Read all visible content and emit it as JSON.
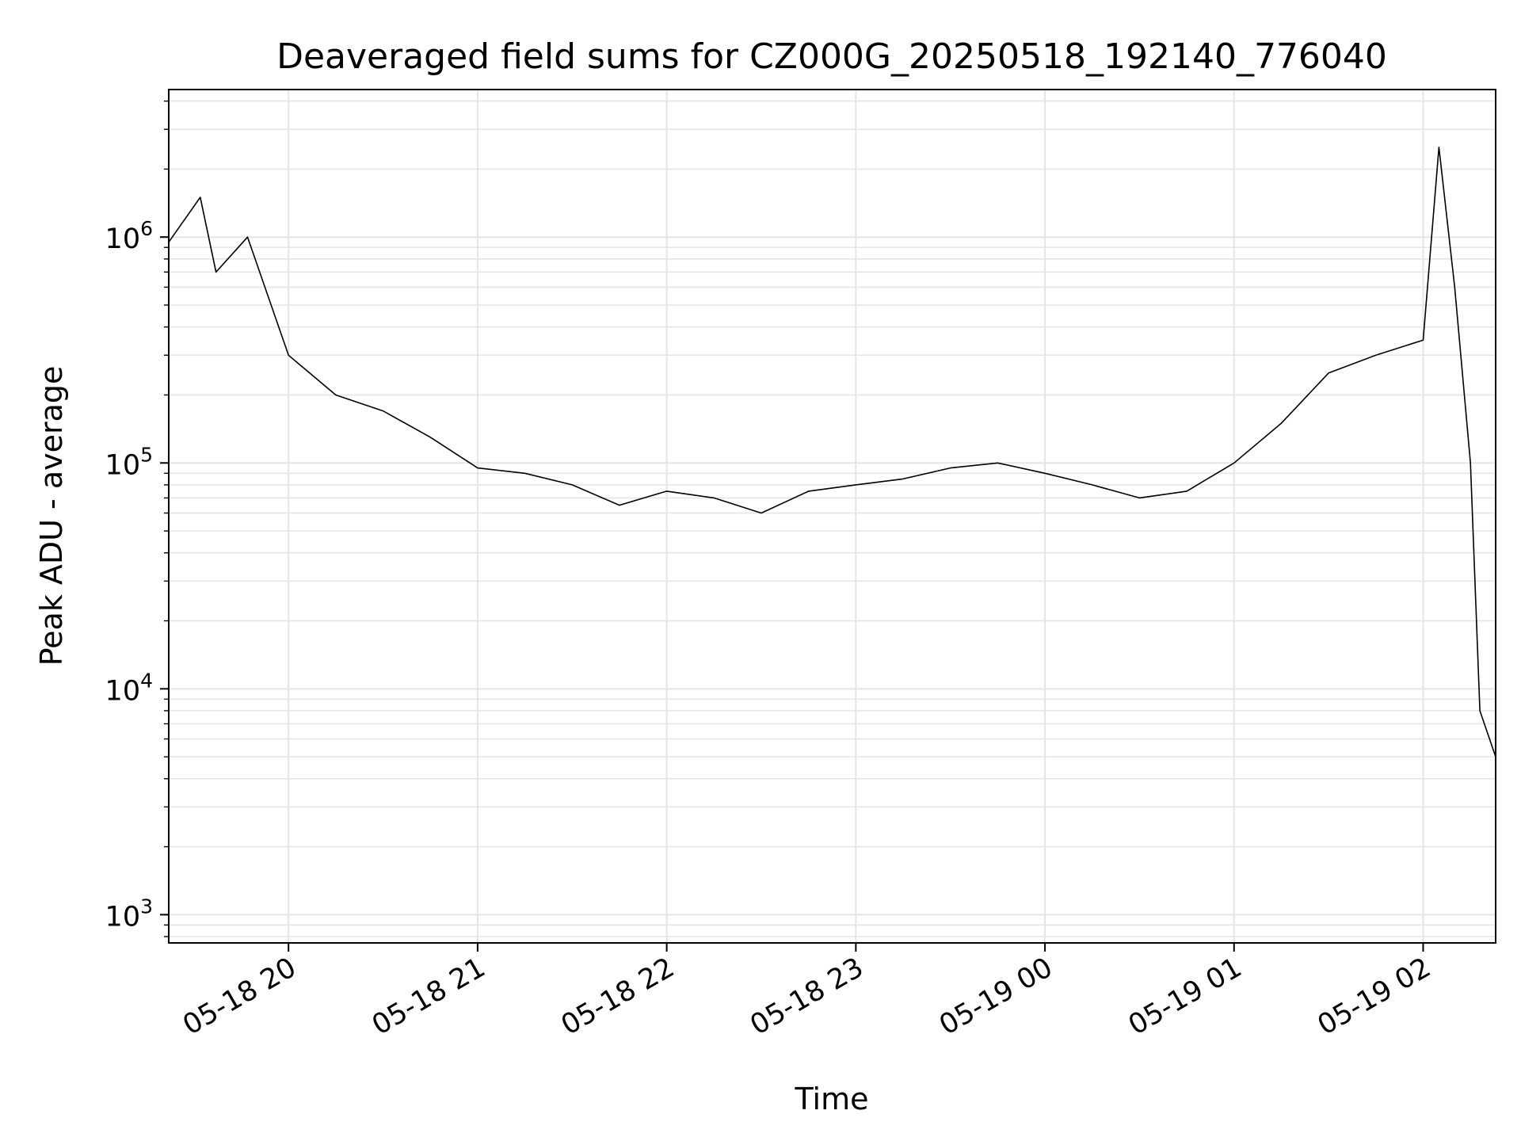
{
  "chart_data": {
    "type": "line",
    "title": "Deaveraged field sums for CZ000G_20250518_192140_776040",
    "xlabel": "Time",
    "ylabel": "Peak ADU - average",
    "yscale": "log",
    "ylim": [
      750,
      4500000
    ],
    "xlim": [
      "2025-05-18 19:22",
      "2025-05-19 02:23"
    ],
    "grid": true,
    "line_color": "#000000",
    "grid_color": "#e5e5e5",
    "x_ticks": [
      {
        "value": "2025-05-18 20:00",
        "label": "05-18 20"
      },
      {
        "value": "2025-05-18 21:00",
        "label": "05-18 21"
      },
      {
        "value": "2025-05-18 22:00",
        "label": "05-18 22"
      },
      {
        "value": "2025-05-18 23:00",
        "label": "05-18 23"
      },
      {
        "value": "2025-05-19 00:00",
        "label": "05-19 00"
      },
      {
        "value": "2025-05-19 01:00",
        "label": "05-19 01"
      },
      {
        "value": "2025-05-19 02:00",
        "label": "05-19 02"
      }
    ],
    "y_ticks": [
      {
        "value": 1000,
        "base": "10",
        "exp": "3"
      },
      {
        "value": 10000,
        "base": "10",
        "exp": "4"
      },
      {
        "value": 100000,
        "base": "10",
        "exp": "5"
      },
      {
        "value": 1000000,
        "base": "10",
        "exp": "6"
      }
    ],
    "series": [
      {
        "x": [
          "2025-05-18 19:22",
          "2025-05-18 19:32",
          "2025-05-18 19:37",
          "2025-05-18 19:47",
          "2025-05-18 20:00",
          "2025-05-18 20:15",
          "2025-05-18 20:30",
          "2025-05-18 20:45",
          "2025-05-18 21:00",
          "2025-05-18 21:15",
          "2025-05-18 21:30",
          "2025-05-18 21:45",
          "2025-05-18 22:00",
          "2025-05-18 22:15",
          "2025-05-18 22:30",
          "2025-05-18 22:45",
          "2025-05-18 23:00",
          "2025-05-18 23:15",
          "2025-05-18 23:30",
          "2025-05-18 23:45",
          "2025-05-19 00:00",
          "2025-05-19 00:15",
          "2025-05-19 00:30",
          "2025-05-19 00:45",
          "2025-05-19 01:00",
          "2025-05-19 01:15",
          "2025-05-19 01:30",
          "2025-05-19 01:45",
          "2025-05-19 02:00",
          "2025-05-19 02:05",
          "2025-05-19 02:10",
          "2025-05-19 02:15",
          "2025-05-19 02:18",
          "2025-05-19 02:23"
        ],
        "y": [
          950000,
          1500000,
          700000,
          1000000,
          300000,
          200000,
          170000,
          130000,
          95000,
          90000,
          80000,
          65000,
          75000,
          70000,
          60000,
          75000,
          80000,
          85000,
          95000,
          100000,
          90000,
          80000,
          70000,
          75000,
          100000,
          150000,
          250000,
          300000,
          350000,
          2500000,
          600000,
          100000,
          8000,
          5000
        ]
      }
    ]
  }
}
